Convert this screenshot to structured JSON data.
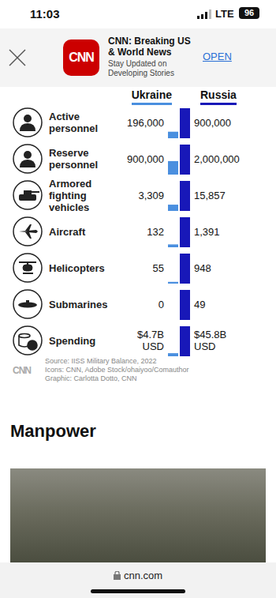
{
  "status_bar": {
    "time": "11:03",
    "network": "LTE",
    "battery": "96"
  },
  "banner": {
    "logo": "CNN",
    "title": "CNN: Breaking US & World News",
    "subtitle": "Stay Updated on Developing Stories",
    "button": "OPEN"
  },
  "header": {
    "columns": [
      "Ukraine",
      "Russia"
    ]
  },
  "chart_data": [
    {
      "type": "bar",
      "title": "Active personnel",
      "categories": [
        null,
        null
      ],
      "values": [
        196000,
        900000
      ],
      "value_labels": [
        "196,000",
        "900,000"
      ],
      "colors": [
        "#4a8fdf",
        "#1818b8"
      ],
      "ylim": [
        0,
        900000
      ],
      "tick_labels": false
    },
    {
      "type": "bar",
      "title": "Reserve personnel",
      "categories": [
        null,
        null
      ],
      "values": [
        900000,
        2000000
      ],
      "value_labels": [
        "900,000",
        "2,000,000"
      ],
      "colors": [
        "#4a8fdf",
        "#1818b8"
      ],
      "ylim": [
        0,
        2000000
      ],
      "tick_labels": false
    },
    {
      "type": "bar",
      "title": "Armored fighting vehicles",
      "categories": [
        null,
        null
      ],
      "values": [
        3309,
        15857
      ],
      "value_labels": [
        "3,309",
        "15,857"
      ],
      "colors": [
        "#4a8fdf",
        "#1818b8"
      ],
      "ylim": [
        0,
        15857
      ],
      "tick_labels": false
    },
    {
      "type": "bar",
      "title": "Aircraft",
      "categories": [
        null,
        null
      ],
      "values": [
        132,
        1391
      ],
      "value_labels": [
        "132",
        "1,391"
      ],
      "colors": [
        "#4a8fdf",
        "#1818b8"
      ],
      "ylim": [
        0,
        1391
      ],
      "tick_labels": false
    },
    {
      "type": "bar",
      "title": "Helicopters",
      "categories": [
        null,
        null
      ],
      "values": [
        55,
        948
      ],
      "value_labels": [
        "55",
        "948"
      ],
      "colors": [
        "#4a8fdf",
        "#1818b8"
      ],
      "ylim": [
        0,
        948
      ],
      "tick_labels": false
    },
    {
      "type": "bar",
      "title": "Submarines",
      "categories": [
        null,
        null
      ],
      "values": [
        0,
        49
      ],
      "value_labels": [
        "0",
        "49"
      ],
      "colors": [
        "#4a8fdf",
        "#1818b8"
      ],
      "ylim": [
        0,
        49
      ],
      "tick_labels": false
    },
    {
      "type": "bar",
      "title": "Spending",
      "categories": [
        null,
        null
      ],
      "values": [
        4700000000,
        45800000000
      ],
      "value_labels": [
        "$4.7B USD",
        "$45.8B USD"
      ],
      "colors": [
        "#4a8fdf",
        "#1818b8"
      ],
      "ylim": [
        0,
        45800000000
      ],
      "tick_labels": false
    }
  ],
  "source": {
    "logo": "CNN",
    "lines": [
      "Source: IISS Military Balance, 2022",
      "Icons: CNN, Adobe Stock/ohaiyoo/Comauthor",
      "Graphic: Carlotta Dotto, CNN"
    ]
  },
  "article": {
    "heading": "Manpower"
  },
  "url_bar": {
    "url": "cnn.com"
  }
}
